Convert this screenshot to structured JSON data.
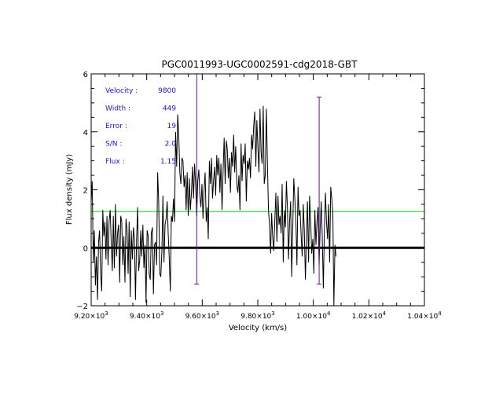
{
  "chart_data": {
    "type": "line",
    "title": "PGC0011993-UGC0002591-cdg2018-GBT",
    "xlabel": "Velocity (km/s)",
    "ylabel": "Flux density (mJy)",
    "xlim": [
      9200,
      10400
    ],
    "ylim": [
      -2,
      6
    ],
    "x_ticks": [
      {
        "value": 9200,
        "mant": "9.20",
        "exp": "3"
      },
      {
        "value": 9400,
        "mant": "9.40",
        "exp": "3"
      },
      {
        "value": 9600,
        "mant": "9.60",
        "exp": "3"
      },
      {
        "value": 9800,
        "mant": "9.80",
        "exp": "3"
      },
      {
        "value": 10000,
        "mant": "1.00",
        "exp": "4"
      },
      {
        "value": 10200,
        "mant": "1.02",
        "exp": "4"
      },
      {
        "value": 10400,
        "mant": "1.04",
        "exp": "4"
      }
    ],
    "y_ticks": [
      {
        "value": -2,
        "label": "−2"
      },
      {
        "value": 0,
        "label": "0"
      },
      {
        "value": 2,
        "label": "2"
      },
      {
        "value": 4,
        "label": "4"
      },
      {
        "value": 6,
        "label": "6"
      }
    ],
    "grid": false,
    "series": [
      {
        "color": "#000000",
        "x0": 9200,
        "dx": 3.8,
        "values": [
          1.6,
          2.3,
          -0.5,
          0.6,
          -1.3,
          -0.3,
          -1.8,
          0.2,
          0.6,
          -0.9,
          -1.5,
          1.3,
          0.4,
          0.9,
          -0.4,
          1.1,
          -0.6,
          0.9,
          1.3,
          0.2,
          -0.8,
          1.1,
          -0.7,
          1.5,
          -0.3,
          0.5,
          0.8,
          -1.2,
          1.1,
          0.9,
          -0.6,
          0.4,
          -1.2,
          1.0,
          0.6,
          -0.9,
          0.9,
          -1.7,
          0.6,
          -0.4,
          0.7,
          0.3,
          -1.8,
          0.2,
          1.4,
          -0.8,
          -0.4,
          0.6,
          -0.3,
          0.8,
          -0.7,
          0.1,
          -1.9,
          0.6,
          0.4,
          -0.9,
          -1.1,
          0.5,
          0.7,
          -1.6,
          0.1,
          0.2,
          -0.6,
          2.6,
          1.6,
          -0.9,
          -1.0,
          -0.1,
          1.8,
          -0.5,
          0.8,
          1.0,
          1.6,
          0.5,
          -0.4,
          -1.5,
          1.1,
          0.9,
          1.7,
          0.9,
          4.0,
          2.8,
          4.6,
          3.9,
          2.6,
          2.2,
          3.1,
          3.0,
          2.1,
          2.5,
          1.3,
          2.6,
          1.1,
          2.4,
          1.3,
          1.9,
          2.8,
          1.7,
          2.9,
          2.2,
          1.1,
          2.3,
          2.7,
          1.8,
          1.4,
          2.2,
          1.0,
          2.0,
          2.6,
          0.9,
          1.4,
          0.3,
          3.0,
          2.2,
          3.1,
          1.7,
          2.3,
          2.8,
          1.8,
          3.2,
          2.5,
          3.1,
          1.9,
          2.9,
          1.3,
          2.6,
          3.8,
          2.2,
          3.7,
          3.4,
          2.4,
          3.1,
          1.9,
          3.3,
          2.8,
          3.9,
          2.6,
          3.5,
          2.2,
          1.9,
          2.5,
          1.3,
          3.6,
          2.3,
          3.2,
          2.9,
          3.6,
          1.6,
          3.0,
          2.7,
          3.1,
          2.4,
          3.9,
          3.4,
          4.2,
          4.7,
          2.8,
          4.4,
          3.5,
          2.6,
          4.8,
          3.3,
          2.9,
          4.9,
          2.2,
          2.5,
          4.8,
          3.0,
          1.3,
          0.8,
          -0.2,
          1.2,
          0.4,
          -0.1,
          0.9,
          1.9,
          0.2,
          1.8,
          0.8,
          1.1,
          0.5,
          2.2,
          -0.5,
          1.3,
          0.7,
          2.3,
          1.4,
          -0.4,
          0.9,
          1.6,
          -1.0,
          0.6,
          2.4,
          1.7,
          0.9,
          -0.6,
          2.1,
          1.1,
          1.3,
          0.4,
          -0.3,
          1.5,
          0.6,
          -1.1,
          0.4,
          1.6,
          -0.5,
          1.8,
          0.9,
          -0.2,
          0.3,
          -0.9,
          1.3,
          0.1,
          0.9,
          1.4,
          -0.6,
          0.7,
          1.6,
          0.4,
          -1.4,
          0.6,
          1.9,
          0.9,
          0.3,
          1.5,
          -0.5,
          2.1,
          1.7,
          1.2,
          -2.0,
          0.1,
          -0.3
        ]
      }
    ],
    "reference_lines": [
      {
        "orientation": "horizontal",
        "value": 0,
        "color": "#000000"
      },
      {
        "orientation": "horizontal",
        "value": 1.25,
        "color": "#00cc00"
      }
    ],
    "markers": [
      {
        "x": 9580,
        "y_top": 6,
        "y_bottom": -1.25,
        "color": "#5a1a8c"
      },
      {
        "x": 10021,
        "y_top": 5.2,
        "y_bottom": -1.25,
        "color": "#5a1a8c"
      }
    ],
    "annotations": [
      {
        "label": "Velocity :",
        "value": "9800"
      },
      {
        "label": "Width :",
        "value": "449"
      },
      {
        "label": "Error :",
        "value": "19"
      },
      {
        "label": "S/N :",
        "value": "2.0"
      },
      {
        "label": "Flux :",
        "value": "1.15"
      }
    ],
    "annotation_color": "#2b0bd8"
  }
}
